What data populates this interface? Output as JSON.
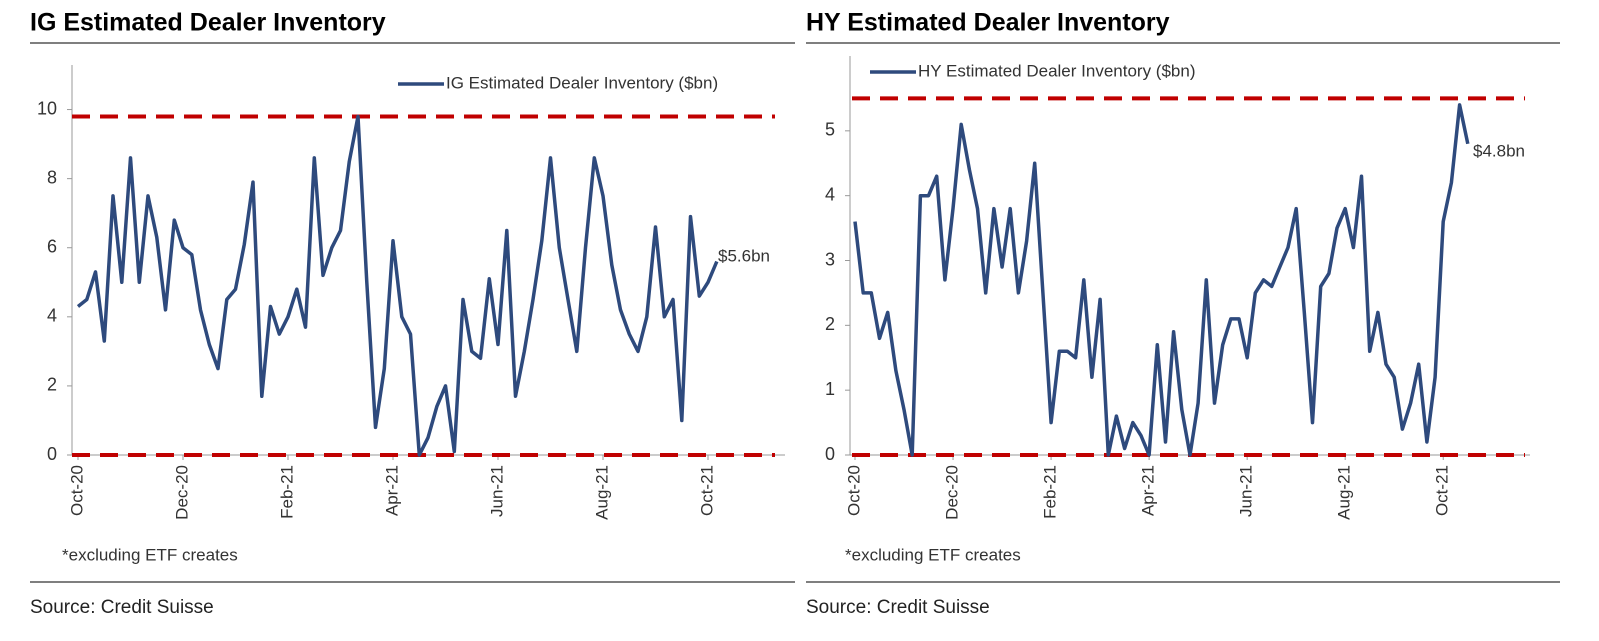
{
  "chart_data": [
    {
      "type": "line",
      "title": "IG Estimated Dealer Inventory",
      "categories": [
        "Oct-20",
        null,
        null,
        null,
        null,
        null,
        null,
        null,
        null,
        null,
        null,
        null,
        "Dec-20",
        null,
        null,
        null,
        null,
        null,
        null,
        null,
        null,
        null,
        null,
        null,
        "Feb-21",
        null,
        null,
        null,
        null,
        null,
        null,
        null,
        null,
        null,
        null,
        null,
        "Apr-21",
        null,
        null,
        null,
        null,
        null,
        null,
        null,
        null,
        null,
        null,
        null,
        "Jun-21",
        null,
        null,
        null,
        null,
        null,
        null,
        null,
        null,
        null,
        null,
        null,
        "Aug-21",
        null,
        null,
        null,
        null,
        null,
        null,
        null,
        null,
        null,
        null,
        null,
        "Oct-21",
        null
      ],
      "series": [
        {
          "name": "IG Estimated Dealer Inventory ($bn)",
          "color": "#2e4a7d",
          "values": [
            4.3,
            4.5,
            5.3,
            3.3,
            7.5,
            5.0,
            8.6,
            5.0,
            7.5,
            6.3,
            4.2,
            6.8,
            6.0,
            5.8,
            4.2,
            3.2,
            2.5,
            4.5,
            4.8,
            6.1,
            7.9,
            1.7,
            4.3,
            3.5,
            4.0,
            4.8,
            3.7,
            8.6,
            5.2,
            6.0,
            6.5,
            8.5,
            9.8,
            5.0,
            0.8,
            2.5,
            6.2,
            4.0,
            3.5,
            0.0,
            0.5,
            1.4,
            2.0,
            0.1,
            4.5,
            3.0,
            2.8,
            5.1,
            3.2,
            6.5,
            1.7,
            3.0,
            4.5,
            6.2,
            8.6,
            6.0,
            4.5,
            3.0,
            6.0,
            8.6,
            7.5,
            5.5,
            4.2,
            3.5,
            3.0,
            4.0,
            6.6,
            4.0,
            4.5,
            1.0,
            6.9,
            4.6,
            5.0,
            5.6
          ]
        }
      ],
      "ylim": [
        0,
        11
      ],
      "yticks": [
        0,
        2,
        4,
        6,
        8,
        10
      ],
      "reference_lines": [
        9.8,
        0
      ],
      "reference_color": "#c00000",
      "annotation": "$5.6bn",
      "footnote": "*excluding ETF creates",
      "source": "Source: Credit Suisse"
    },
    {
      "type": "line",
      "title": "HY Estimated Dealer Inventory",
      "categories": [
        "Oct-20",
        null,
        null,
        null,
        null,
        null,
        null,
        null,
        null,
        null,
        null,
        null,
        "Dec-20",
        null,
        null,
        null,
        null,
        null,
        null,
        null,
        null,
        null,
        null,
        null,
        "Feb-21",
        null,
        null,
        null,
        null,
        null,
        null,
        null,
        null,
        null,
        null,
        null,
        "Apr-21",
        null,
        null,
        null,
        null,
        null,
        null,
        null,
        null,
        null,
        null,
        null,
        "Jun-21",
        null,
        null,
        null,
        null,
        null,
        null,
        null,
        null,
        null,
        null,
        null,
        "Aug-21",
        null,
        null,
        null,
        null,
        null,
        null,
        null,
        null,
        null,
        null,
        null,
        "Oct-21",
        null,
        null,
        null
      ],
      "series": [
        {
          "name": "HY Estimated Dealer Inventory ($bn)",
          "color": "#2e4a7d",
          "values": [
            3.6,
            2.5,
            2.5,
            1.8,
            2.2,
            1.3,
            0.7,
            0.0,
            4.0,
            4.0,
            4.3,
            2.7,
            3.8,
            5.1,
            4.4,
            3.8,
            2.5,
            3.8,
            2.9,
            3.8,
            2.5,
            3.3,
            4.5,
            2.5,
            0.5,
            1.6,
            1.6,
            1.5,
            2.7,
            1.2,
            2.4,
            0.0,
            0.6,
            0.1,
            0.5,
            0.3,
            0.0,
            1.7,
            0.2,
            1.9,
            0.7,
            0.0,
            0.8,
            2.7,
            0.8,
            1.7,
            2.1,
            2.1,
            1.5,
            2.5,
            2.7,
            2.6,
            2.9,
            3.2,
            3.8,
            2.2,
            0.5,
            2.6,
            2.8,
            3.5,
            3.8,
            3.2,
            4.3,
            1.6,
            2.2,
            1.4,
            1.2,
            0.4,
            0.8,
            1.4,
            0.2,
            1.2,
            3.6,
            4.2,
            5.4,
            4.8
          ]
        }
      ],
      "ylim": [
        0,
        6
      ],
      "yticks": [
        0,
        1,
        2,
        3,
        4,
        5
      ],
      "reference_lines": [
        5.5,
        0
      ],
      "reference_color": "#c00000",
      "annotation": "$4.8bn",
      "footnote": "*excluding ETF creates",
      "source": "Source: Credit Suisse"
    }
  ]
}
